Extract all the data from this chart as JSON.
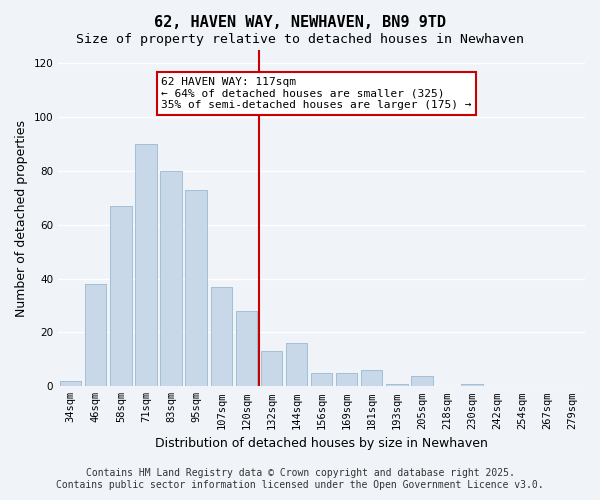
{
  "title": "62, HAVEN WAY, NEWHAVEN, BN9 9TD",
  "subtitle": "Size of property relative to detached houses in Newhaven",
  "xlabel": "Distribution of detached houses by size in Newhaven",
  "ylabel": "Number of detached properties",
  "bin_labels": [
    "34sqm",
    "46sqm",
    "58sqm",
    "71sqm",
    "83sqm",
    "95sqm",
    "107sqm",
    "120sqm",
    "132sqm",
    "144sqm",
    "156sqm",
    "169sqm",
    "181sqm",
    "193sqm",
    "205sqm",
    "218sqm",
    "230sqm",
    "242sqm",
    "254sqm",
    "267sqm",
    "279sqm"
  ],
  "bar_heights": [
    2,
    38,
    67,
    90,
    80,
    73,
    37,
    28,
    13,
    16,
    5,
    5,
    6,
    1,
    4,
    0,
    1,
    0,
    0,
    0,
    0
  ],
  "bar_color": "#c8d8e8",
  "bar_edge_color": "#8ab0cc",
  "vline_x": 7.5,
  "vline_color": "#cc0000",
  "annotation_text": "62 HAVEN WAY: 117sqm\n← 64% of detached houses are smaller (325)\n35% of semi-detached houses are larger (175) →",
  "annotation_box_color": "#ffffff",
  "annotation_box_edge_color": "#cc0000",
  "ylim": [
    0,
    125
  ],
  "yticks": [
    0,
    20,
    40,
    60,
    80,
    100,
    120
  ],
  "footer_line1": "Contains HM Land Registry data © Crown copyright and database right 2025.",
  "footer_line2": "Contains public sector information licensed under the Open Government Licence v3.0.",
  "background_color": "#f0f4f8",
  "grid_color": "#ffffff",
  "title_fontsize": 11,
  "subtitle_fontsize": 9.5,
  "axis_label_fontsize": 9,
  "tick_fontsize": 7.5,
  "annotation_fontsize": 8,
  "footer_fontsize": 7
}
